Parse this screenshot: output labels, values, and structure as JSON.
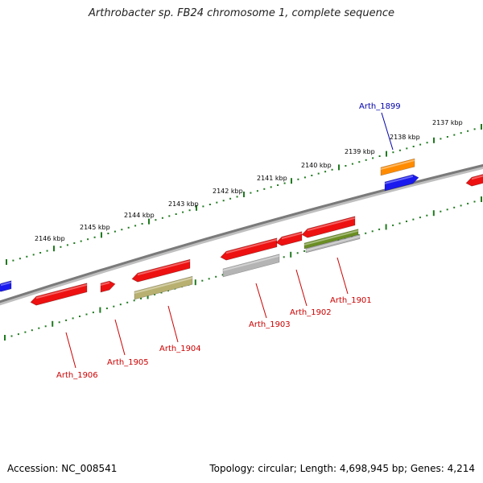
{
  "title": "Arthrobacter sp. FB24 chromosome 1, complete sequence",
  "footer": {
    "accession": "Accession: NC_008541",
    "summary": "Topology: circular; Length: 4,698,945 bp; Genes: 4,214"
  },
  "colors": {
    "backbone": "#7a7a7a",
    "tick": "#1f7a1f",
    "forward_gene": "#ee1111",
    "reverse_gene": "#1a1aee",
    "label_red": "#cc0000",
    "label_blue": "#0000aa",
    "orange": "#ff8c00",
    "olive": "#b8b070",
    "grey": "#b4b4b4",
    "dark_olive": "#6b8e23"
  },
  "tick_labels": [
    "2137 kbp",
    "2138 kbp",
    "2139 kbp",
    "2140 kbp",
    "2141 kbp",
    "2142 kbp",
    "2143 kbp",
    "2144 kbp",
    "2145 kbp",
    "2146 kbp"
  ],
  "gene_labels": [
    {
      "name": "Arth_1899",
      "color": "blue"
    },
    {
      "name": "Arth_1901",
      "color": "red"
    },
    {
      "name": "Arth_1902",
      "color": "red"
    },
    {
      "name": "Arth_1903",
      "color": "red"
    },
    {
      "name": "Arth_1904",
      "color": "red"
    },
    {
      "name": "Arth_1905",
      "color": "red"
    },
    {
      "name": "Arth_1906",
      "color": "red"
    }
  ]
}
